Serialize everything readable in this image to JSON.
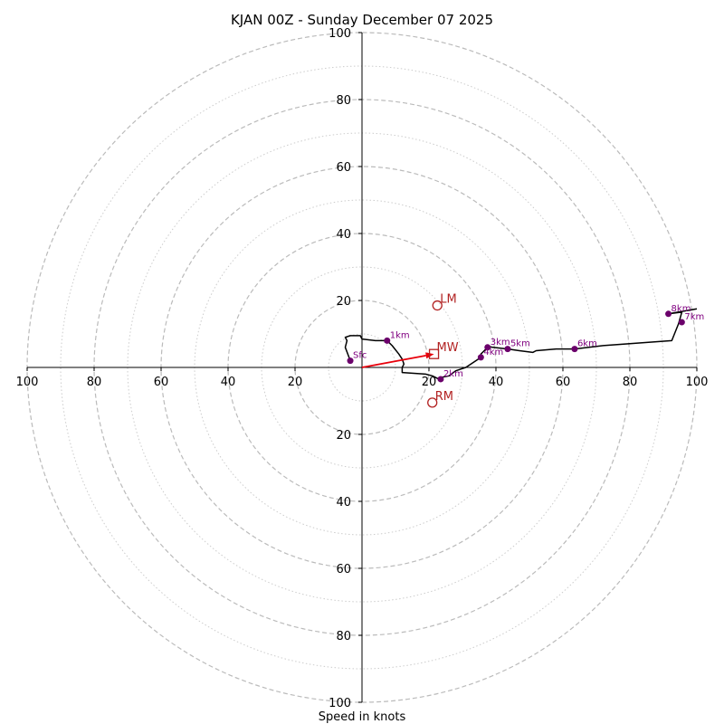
{
  "chart_data": {
    "type": "hodograph",
    "title": "KJAN 00Z - Sunday December 07 2025",
    "xlabel": "Speed in knots",
    "xlim": [
      -100,
      100
    ],
    "ylim": [
      -100,
      100
    ],
    "major_rings": [
      20,
      40,
      60,
      80,
      100
    ],
    "minor_rings": [
      10,
      30,
      50,
      70,
      90
    ],
    "x_tick_labels": [
      "100",
      "80",
      "60",
      "40",
      "20",
      "20",
      "40",
      "60",
      "80",
      "100"
    ],
    "x_tick_values": [
      -100,
      -80,
      -60,
      -40,
      -20,
      20,
      40,
      60,
      80,
      100
    ],
    "y_tick_labels": [
      "100",
      "80",
      "60",
      "40",
      "20",
      "20",
      "40",
      "60",
      "80",
      "100"
    ],
    "y_tick_values": [
      100,
      80,
      60,
      40,
      20,
      -20,
      -40,
      -60,
      -80,
      -100
    ],
    "trace": [
      [
        -3.5,
        2
      ],
      [
        -5,
        6
      ],
      [
        -4.5,
        8
      ],
      [
        -5,
        9
      ],
      [
        -3.5,
        9.5
      ],
      [
        -0.5,
        9.5
      ],
      [
        0,
        8.5
      ],
      [
        4,
        8
      ],
      [
        7.5,
        8
      ],
      [
        9,
        6.5
      ],
      [
        11,
        4
      ],
      [
        12,
        2.5
      ],
      [
        12.5,
        1
      ],
      [
        12,
        0
      ],
      [
        12,
        -1
      ],
      [
        12,
        -1.5
      ],
      [
        19,
        -2
      ],
      [
        21,
        -2.5
      ],
      [
        24,
        -4
      ],
      [
        23.5,
        -3
      ],
      [
        26,
        -2.5
      ],
      [
        28,
        -1
      ],
      [
        31,
        0
      ],
      [
        34,
        2
      ],
      [
        35.5,
        3
      ],
      [
        35.5,
        4
      ],
      [
        36,
        4.5
      ],
      [
        37.5,
        6
      ],
      [
        37,
        6.5
      ],
      [
        39,
        6
      ],
      [
        43.5,
        5.5
      ],
      [
        47,
        5
      ],
      [
        51,
        4.5
      ],
      [
        52,
        5
      ],
      [
        58,
        5.5
      ],
      [
        63.5,
        5.5
      ],
      [
        72,
        6.5
      ],
      [
        92.5,
        8
      ],
      [
        94.5,
        13
      ],
      [
        95.5,
        16.5
      ],
      [
        91.5,
        16
      ],
      [
        100,
        17.5
      ]
    ],
    "height_markers": [
      {
        "label": "Sfc",
        "u": -3.5,
        "v": 2
      },
      {
        "label": "1km",
        "u": 7.5,
        "v": 8
      },
      {
        "label": "2km",
        "u": 23.5,
        "v": -3.5
      },
      {
        "label": "3km",
        "u": 37.5,
        "v": 6
      },
      {
        "label": "4km",
        "u": 35.5,
        "v": 3
      },
      {
        "label": "5km",
        "u": 43.5,
        "v": 5.5
      },
      {
        "label": "6km",
        "u": 63.5,
        "v": 5.5
      },
      {
        "label": "7km",
        "u": 95.5,
        "v": 13.5
      },
      {
        "label": "8km",
        "u": 91.5,
        "v": 16
      }
    ],
    "storm_motions": [
      {
        "label": "LM",
        "u": 22.5,
        "v": 18.5,
        "shape": "circle"
      },
      {
        "label": "MW",
        "u": 21.5,
        "v": 4,
        "shape": "square"
      },
      {
        "label": "RM",
        "u": 21,
        "v": -10.5,
        "shape": "circle"
      }
    ],
    "mean_wind_vector": {
      "u": 21.5,
      "v": 4
    },
    "colors": {
      "trace": "#000000",
      "marker": "#6b006b",
      "marker_label": "#800080",
      "storm_motion": "#b22222",
      "vector": "#e8000b",
      "major_ring": "#bbbbbb",
      "minor_ring": "#cccccc",
      "axis": "#000000"
    }
  }
}
